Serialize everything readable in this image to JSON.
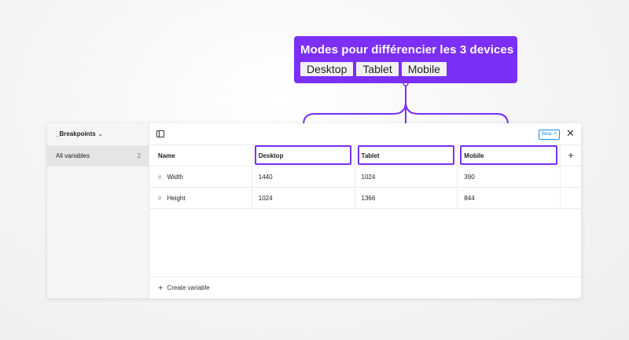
{
  "callout": {
    "title": "Modes pour différencier les 3 devices",
    "modes": [
      "Desktop",
      "Tablet",
      "Mobile"
    ],
    "accent": "#7b2ff7"
  },
  "sidebar": {
    "collection_name": "_Breakpoints",
    "items": [
      {
        "label": "All variables",
        "count": "2"
      }
    ]
  },
  "toolbar": {
    "beta_label": "Beta"
  },
  "table": {
    "headers": {
      "name": "Name",
      "modes": [
        "Desktop",
        "Tablet",
        "Mobile"
      ]
    },
    "rows": [
      {
        "name": "Width",
        "values": [
          "1440",
          "1024",
          "390"
        ]
      },
      {
        "name": "Height",
        "values": [
          "1024",
          "1366",
          "844"
        ]
      }
    ]
  },
  "footer": {
    "create_label": "Create variable"
  }
}
